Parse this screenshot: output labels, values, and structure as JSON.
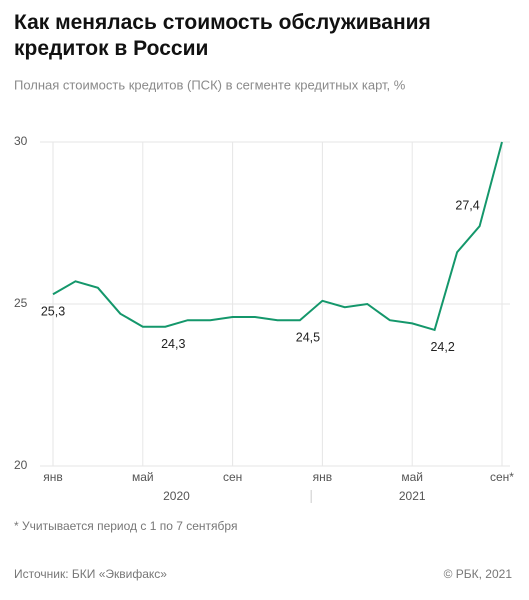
{
  "chart_data": {
    "type": "line",
    "title": "Как менялась стоимость обслуживания кредиток в России",
    "subtitle": "Полная стоимость кредитов (ПСК) в сегменте кредитных карт, %",
    "categories": [
      "янв",
      null,
      null,
      null,
      "май",
      null,
      null,
      null,
      "сен",
      null,
      null,
      null,
      "янв",
      null,
      null,
      null,
      "май",
      null,
      null,
      null,
      "сен*"
    ],
    "years": [
      "2020",
      "2021"
    ],
    "series": [
      {
        "name": "ПСК",
        "color": "#14976b",
        "values": [
          25.3,
          25.7,
          25.5,
          24.7,
          24.3,
          24.3,
          24.5,
          24.5,
          24.6,
          24.6,
          24.5,
          24.5,
          25.1,
          24.9,
          25.0,
          24.5,
          24.4,
          24.2,
          26.6,
          27.4,
          30.0
        ],
        "value_labels": [
          "25,3",
          null,
          null,
          null,
          null,
          "24,3",
          null,
          null,
          null,
          null,
          null,
          "24,5",
          null,
          null,
          null,
          null,
          null,
          "24,2",
          null,
          "27,4",
          null
        ]
      }
    ],
    "ylim": [
      20,
      30
    ],
    "yticks": [
      20,
      25,
      30
    ],
    "grid": true,
    "note": "* Учитывается период с 1 по 7 сентября",
    "source": "Источник:  БКИ «Эквифакс»",
    "credit": "© РБК, 2021"
  }
}
